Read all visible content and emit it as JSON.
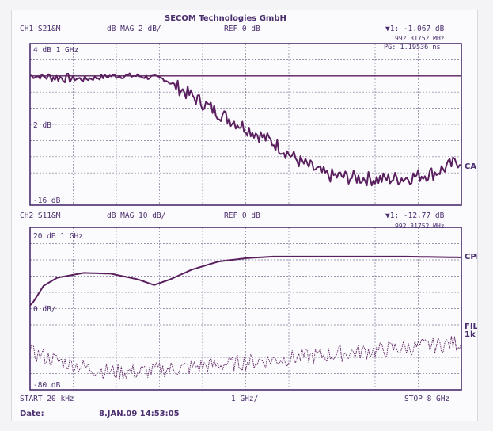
{
  "header": {
    "company": "SECOM Technologies GmbH",
    "ch1_label": "CH1 S21&M",
    "ch1_format": "dB  MAG 2 dB/",
    "ch1_ref": "REF 0 dB",
    "ch1_marker": "▼1:   -1.067 dB",
    "ch1_marker_freq": "992.31752 MHz",
    "ch1_group_delay": "PG:  1.19536 ns",
    "ch2_label": "CH2 S11&M",
    "ch2_format": "dB  MAG 10 dB/",
    "ch2_ref": "REF 0 dB",
    "ch2_marker": "▼1:   -12.77 dB",
    "ch2_marker_freq": "992.31752 MHz"
  },
  "panel1": {
    "scale_top": "4 dB  1 GHz",
    "label_mid": "2 dB",
    "label_bottom": "-16 dB",
    "trace_label": "CAI"
  },
  "panel2": {
    "scale_top": "20 dB  1 GHz",
    "label_mid": "0 dB/",
    "label_bottom": "-80 dB",
    "trace_label_cpl": "CPL",
    "trace_label_fil": "FIL",
    "trace_label_fil2": "1k"
  },
  "footer": {
    "start": "START  20 kHz",
    "center": "1 GHz/",
    "stop": "STOP  8 GHz",
    "date_label": "Date:",
    "date_value": "8.JAN.09   14:53:05"
  },
  "chart_data": [
    {
      "type": "line",
      "title": "CH1 S21&M",
      "xlabel": "",
      "ylabel": "",
      "xlim": [
        0,
        8
      ],
      "ylim": [
        -16,
        4
      ],
      "grid": true,
      "series": [
        {
          "name": "CAI",
          "x": [
            0.02,
            0.5,
            1.0,
            1.5,
            2.0,
            2.5,
            3.0,
            3.5,
            4.0,
            4.5,
            5.0,
            5.5,
            6.0,
            6.5,
            7.0,
            7.5,
            8.0
          ],
          "y": [
            0,
            -0.2,
            -0.4,
            0,
            0,
            -0.4,
            -2.5,
            -4.6,
            -6.4,
            -8.2,
            -10.6,
            -12.3,
            -12.6,
            -12.8,
            -12.6,
            -12.0,
            -10.4
          ]
        },
        {
          "name": "",
          "x": [
            0.02,
            8.0
          ],
          "y": [
            0,
            0
          ]
        }
      ]
    },
    {
      "type": "line",
      "title": "CH2 S11&M",
      "xlabel": "",
      "ylabel": "",
      "xlim": [
        0,
        8
      ],
      "ylim": [
        -80,
        20
      ],
      "grid": true,
      "series": [
        {
          "name": "CPL",
          "x": [
            0.02,
            0.25,
            0.5,
            1.0,
            1.5,
            2.0,
            2.3,
            2.6,
            3.0,
            3.5,
            4.0,
            4.5,
            5.0,
            5.5,
            6.0,
            7.0,
            8.0
          ],
          "y": [
            -28,
            -16,
            -11,
            -8,
            -8.5,
            -12,
            -15.5,
            -12,
            -6,
            -1,
            1,
            2,
            2,
            2,
            2,
            2,
            1.5
          ]
        },
        {
          "name": "FIL",
          "x": [
            0.02,
            0.5,
            1.0,
            1.5,
            2.0,
            3.0,
            4.0,
            5.0,
            6.0,
            7.0,
            8.0
          ],
          "y": [
            -57,
            -62,
            -66,
            -69,
            -69,
            -66,
            -63,
            -60,
            -57,
            -54,
            -51
          ]
        }
      ]
    }
  ],
  "colors": {
    "ink": "#4a2e6e",
    "trace": "#5a1f5e",
    "grid": "#7f7896"
  }
}
